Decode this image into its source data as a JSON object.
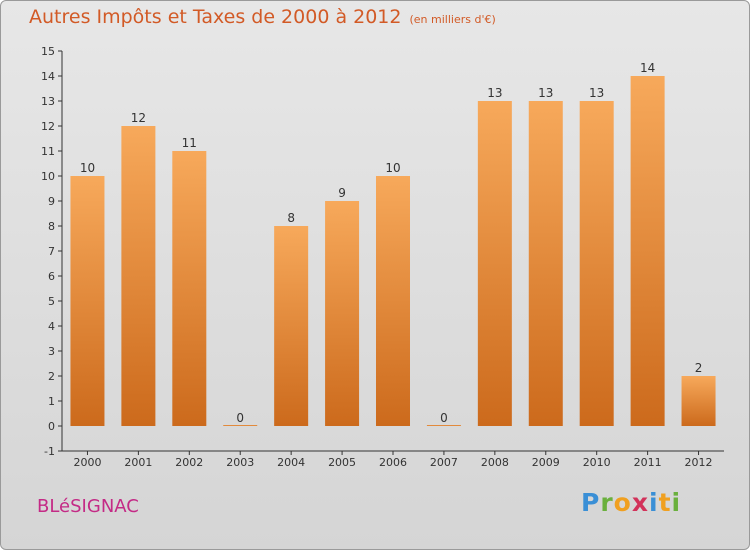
{
  "header": {
    "title": "Autres Impôts et Taxes de 2000 à 2012",
    "unit": "(en milliers d'€)"
  },
  "commune": "BLéSIGNAC",
  "logo": {
    "text": "Proxiti",
    "letter_colors": [
      "#3a8fd6",
      "#6ab03d",
      "#f0a020",
      "#d2325a",
      "#3a8fd6",
      "#f0a020",
      "#6ab03d"
    ]
  },
  "colors": {
    "title": "#d25a26",
    "bar_light": "#f7a95b",
    "bar_dark": "#cc6a1c",
    "commune": "#c42a86"
  },
  "chart_data": {
    "type": "bar",
    "categories": [
      "2000",
      "2001",
      "2002",
      "2003",
      "2004",
      "2005",
      "2006",
      "2007",
      "2008",
      "2009",
      "2010",
      "2011",
      "2012"
    ],
    "values": [
      10,
      12,
      11,
      0,
      8,
      9,
      10,
      0,
      13,
      13,
      13,
      14,
      2
    ],
    "y_ticks": [
      -1,
      0,
      1,
      2,
      3,
      4,
      5,
      6,
      7,
      8,
      9,
      10,
      11,
      12,
      13,
      14,
      15
    ],
    "ylim": [
      -1,
      15
    ],
    "grid": false,
    "data_labels": true
  }
}
